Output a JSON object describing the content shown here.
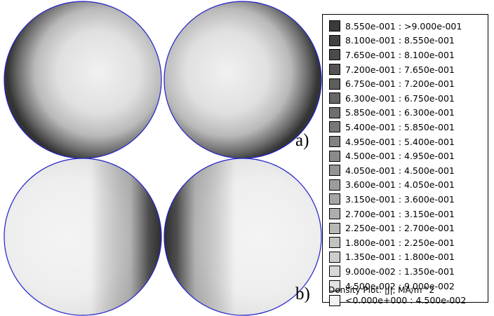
{
  "panels": [
    {
      "label": "a)"
    },
    {
      "label": "b)"
    }
  ],
  "legend": {
    "entries": [
      {
        "range": "8.550e-001 : >9.000e-001",
        "color": "#3a3a3a"
      },
      {
        "range": "8.100e-001 : 8.550e-001",
        "color": "#424242"
      },
      {
        "range": "7.650e-001 : 8.100e-001",
        "color": "#4b4b4b"
      },
      {
        "range": "7.200e-001 : 7.650e-001",
        "color": "#545454"
      },
      {
        "range": "6.750e-001 : 7.200e-001",
        "color": "#5d5d5d"
      },
      {
        "range": "6.300e-001 : 6.750e-001",
        "color": "#666666"
      },
      {
        "range": "5.850e-001 : 6.300e-001",
        "color": "#6f6f6f"
      },
      {
        "range": "5.400e-001 : 5.850e-001",
        "color": "#787878"
      },
      {
        "range": "4.950e-001 : 5.400e-001",
        "color": "#818181"
      },
      {
        "range": "4.500e-001 : 4.950e-001",
        "color": "#8a8a8a"
      },
      {
        "range": "4.050e-001 : 4.500e-001",
        "color": "#939393"
      },
      {
        "range": "3.600e-001 : 4.050e-001",
        "color": "#9c9c9c"
      },
      {
        "range": "3.150e-001 : 3.600e-001",
        "color": "#a5a5a5"
      },
      {
        "range": "2.700e-001 : 3.150e-001",
        "color": "#aeaeae"
      },
      {
        "range": "2.250e-001 : 2.700e-001",
        "color": "#b7b7b7"
      },
      {
        "range": "1.800e-001 : 2.250e-001",
        "color": "#c2c2c2"
      },
      {
        "range": "1.350e-001 : 1.800e-001",
        "color": "#cdcdcd"
      },
      {
        "range": "9.000e-002 : 1.350e-001",
        "color": "#d8d8d8"
      },
      {
        "range": "4.500e-002 : 9.000e-002",
        "color": "#e4e4e4"
      },
      {
        "range": "<0.000e+000 : 4.500e-002",
        "color": "#f2f2f2"
      }
    ],
    "caption": "Density Plot: |J|, MA/m^2"
  },
  "colors": {
    "outline": "#2222cc",
    "background": "#ffffff"
  }
}
